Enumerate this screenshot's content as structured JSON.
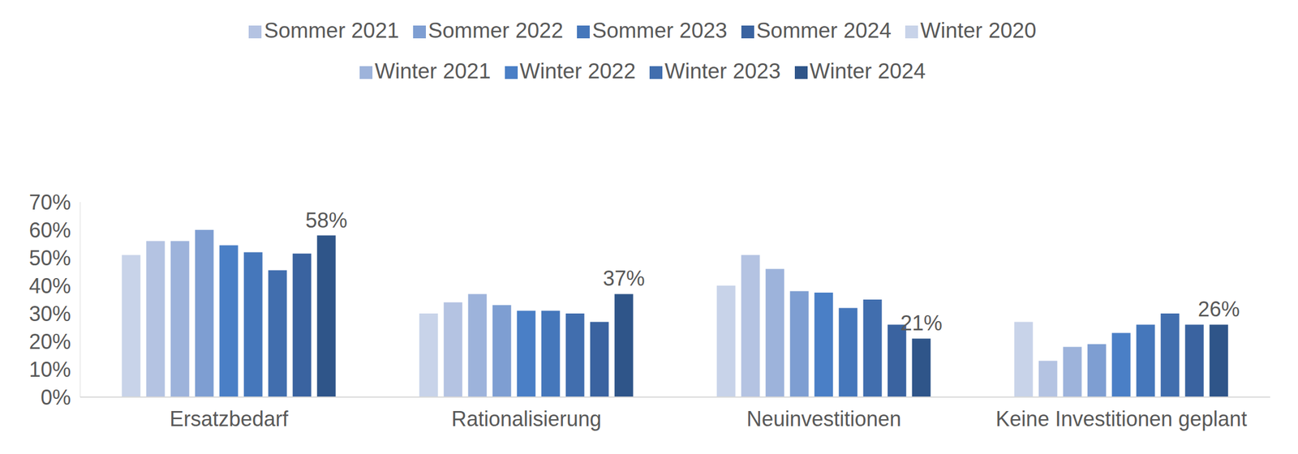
{
  "chart_data": {
    "type": "bar",
    "categories": [
      "Ersatzbedarf",
      "Rationalisierung",
      "Neuinvestitionen",
      "Keine Investitionen geplant"
    ],
    "series": [
      {
        "name": "Winter 2020",
        "color": "#C8D3E9",
        "values": [
          51,
          30,
          40,
          27
        ]
      },
      {
        "name": "Sommer 2021",
        "color": "#B4C3E2",
        "values": [
          56,
          34,
          51,
          13
        ]
      },
      {
        "name": "Winter 2021",
        "color": "#9DB3DB",
        "values": [
          56,
          37,
          46,
          18
        ]
      },
      {
        "name": "Sommer 2022",
        "color": "#7E9ED2",
        "values": [
          60,
          33,
          38,
          19
        ]
      },
      {
        "name": "Winter 2022",
        "color": "#4A7FC6",
        "values": [
          54.5,
          31,
          37.5,
          23
        ]
      },
      {
        "name": "Sommer 2023",
        "color": "#4577BB",
        "values": [
          52,
          31,
          32,
          26
        ]
      },
      {
        "name": "Winter 2023",
        "color": "#416EAE",
        "values": [
          45.5,
          30,
          35,
          30
        ]
      },
      {
        "name": "Sommer 2024",
        "color": "#3A63A0",
        "values": [
          51.5,
          27,
          26,
          26
        ]
      },
      {
        "name": "Winter 2024",
        "color": "#2F5589",
        "values": [
          58,
          37,
          21,
          26
        ],
        "data_labels": true,
        "value_labels": [
          "58%",
          "37%",
          "21%",
          "26%"
        ]
      }
    ],
    "ylim": [
      0,
      70
    ],
    "yticks": [
      {
        "value": 0,
        "label": "0%"
      },
      {
        "value": 10,
        "label": "10%"
      },
      {
        "value": 20,
        "label": "20%"
      },
      {
        "value": 30,
        "label": "30%"
      },
      {
        "value": 40,
        "label": "40%"
      },
      {
        "value": 50,
        "label": "50%"
      },
      {
        "value": 60,
        "label": "60%"
      },
      {
        "value": 70,
        "label": "70%"
      }
    ],
    "grid": false,
    "legend": "top"
  }
}
